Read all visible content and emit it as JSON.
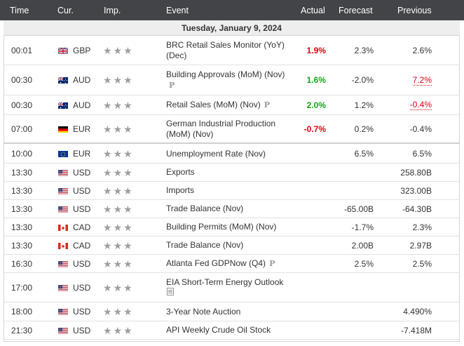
{
  "header": {
    "time": "Time",
    "currency": "Cur.",
    "importance": "Imp.",
    "event": "Event",
    "actual": "Actual",
    "forecast": "Forecast",
    "previous": "Previous"
  },
  "date_label": "Tuesday, January 9, 2024",
  "colors": {
    "header_bg": "#424447",
    "negative": "#e4000f",
    "positive": "#14a514",
    "star": "#9e9e9e"
  },
  "rows": [
    {
      "time": "00:01",
      "flag": "gb-flag-icon",
      "currency": "GBP",
      "importance": 3,
      "event_lines": [
        "BRC Retail Sales Monitor (YoY)",
        "(Dec)"
      ],
      "actual": "1.9%",
      "actual_color": "negative",
      "forecast": "2.3%",
      "previous": "2.6%",
      "previous_revised": false,
      "preliminary": false
    },
    {
      "time": "00:30",
      "flag": "au-flag-icon",
      "currency": "AUD",
      "importance": 3,
      "event_lines": [
        "Building Approvals (MoM) (Nov)",
        ""
      ],
      "actual": "1.6%",
      "actual_color": "positive",
      "forecast": "-2.0%",
      "previous": "7.2%",
      "previous_revised": true,
      "preliminary": true
    },
    {
      "time": "00:30",
      "flag": "au-flag-icon",
      "currency": "AUD",
      "importance": 3,
      "event_lines": [
        "Retail Sales (MoM) (Nov)"
      ],
      "actual": "2.0%",
      "actual_color": "positive",
      "forecast": "1.2%",
      "previous": "-0.4%",
      "previous_revised": true,
      "preliminary": true
    },
    {
      "time": "07:00",
      "flag": "de-flag-icon",
      "currency": "EUR",
      "importance": 3,
      "event_lines": [
        "German Industrial Production",
        "(MoM) (Nov)"
      ],
      "actual": "-0.7%",
      "actual_color": "negative",
      "forecast": "0.2%",
      "previous": "-0.4%",
      "previous_revised": false,
      "preliminary": false
    },
    {
      "time": "10:00",
      "flag": "eu-flag-icon",
      "currency": "EUR",
      "importance": 3,
      "event_lines": [
        "Unemployment Rate (Nov)"
      ],
      "actual": "",
      "forecast": "6.5%",
      "previous": "6.5%",
      "previous_revised": false,
      "preliminary": false
    },
    {
      "time": "13:30",
      "flag": "us-flag-icon",
      "currency": "USD",
      "importance": 3,
      "event_lines": [
        "Exports"
      ],
      "actual": "",
      "forecast": "",
      "previous": "258.80B",
      "previous_revised": false,
      "preliminary": false
    },
    {
      "time": "13:30",
      "flag": "us-flag-icon",
      "currency": "USD",
      "importance": 3,
      "event_lines": [
        "Imports"
      ],
      "actual": "",
      "forecast": "",
      "previous": "323.00B",
      "previous_revised": false,
      "preliminary": false
    },
    {
      "time": "13:30",
      "flag": "us-flag-icon",
      "currency": "USD",
      "importance": 3,
      "event_lines": [
        "Trade Balance (Nov)"
      ],
      "actual": "",
      "forecast": "-65.00B",
      "previous": "-64.30B",
      "previous_revised": false,
      "preliminary": false
    },
    {
      "time": "13:30",
      "flag": "ca-flag-icon",
      "currency": "CAD",
      "importance": 3,
      "event_lines": [
        "Building Permits (MoM) (Nov)"
      ],
      "actual": "",
      "forecast": "-1.7%",
      "previous": "2.3%",
      "previous_revised": false,
      "preliminary": false
    },
    {
      "time": "13:30",
      "flag": "ca-flag-icon",
      "currency": "CAD",
      "importance": 3,
      "event_lines": [
        "Trade Balance (Nov)"
      ],
      "actual": "",
      "forecast": "2.00B",
      "previous": "2.97B",
      "previous_revised": false,
      "preliminary": false
    },
    {
      "time": "16:30",
      "flag": "us-flag-icon",
      "currency": "USD",
      "importance": 3,
      "event_lines": [
        "Atlanta Fed GDPNow (Q4)"
      ],
      "actual": "",
      "forecast": "2.5%",
      "previous": "2.5%",
      "previous_revised": false,
      "preliminary": true
    },
    {
      "time": "17:00",
      "flag": "us-flag-icon",
      "currency": "USD",
      "importance": 3,
      "event_lines": [
        "EIA Short-Term Energy Outlook",
        ""
      ],
      "actual": "",
      "forecast": "",
      "previous": "",
      "previous_revised": false,
      "preliminary": false,
      "has_speech": true
    },
    {
      "time": "18:00",
      "flag": "us-flag-icon",
      "currency": "USD",
      "importance": 3,
      "event_lines": [
        "3-Year Note Auction"
      ],
      "actual": "",
      "forecast": "",
      "previous": "4.490%",
      "previous_revised": false,
      "preliminary": false
    },
    {
      "time": "21:30",
      "flag": "us-flag-icon",
      "currency": "USD",
      "importance": 3,
      "event_lines": [
        "API Weekly Crude Oil Stock"
      ],
      "actual": "",
      "forecast": "",
      "previous": "-7.418M",
      "previous_revised": false,
      "preliminary": false
    }
  ],
  "preliminary_marker": "P"
}
